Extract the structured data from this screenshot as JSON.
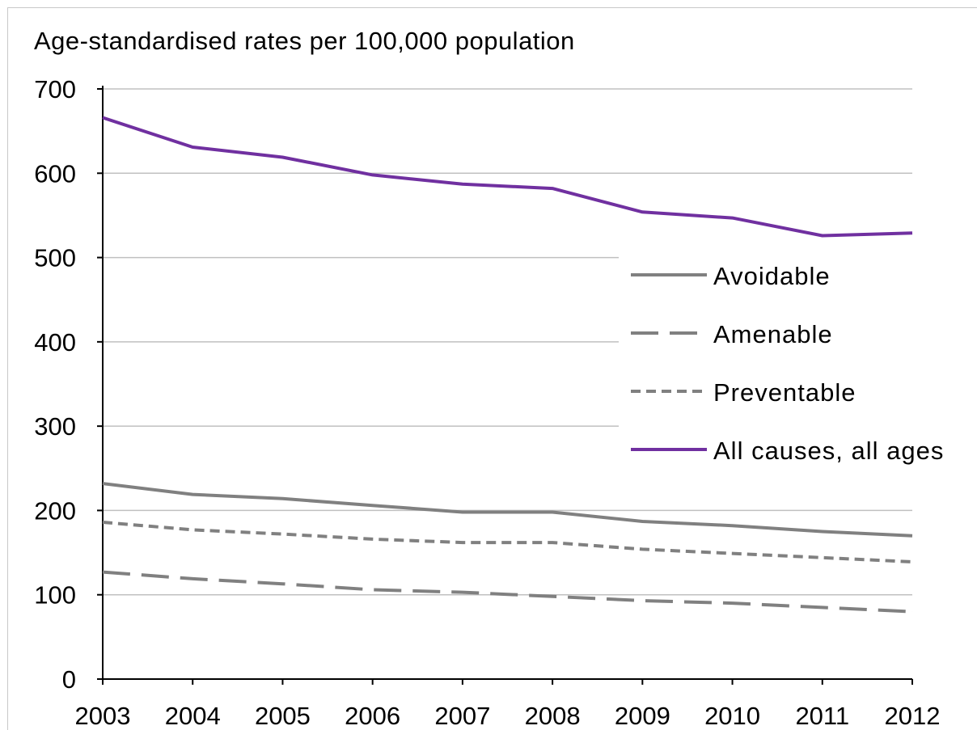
{
  "chart_data": {
    "type": "line",
    "title": "",
    "ylabel": "Age-standardised rates per 100,000 population",
    "xlabel": "",
    "x": [
      "2003",
      "2004",
      "2005",
      "2006",
      "2007",
      "2008",
      "2009",
      "2010",
      "2011",
      "2012"
    ],
    "ylim": [
      0,
      700
    ],
    "yticks": [
      "0",
      "100",
      "200",
      "300",
      "400",
      "500",
      "600",
      "700"
    ],
    "grid": "horizontal",
    "legend_position": "right",
    "series": [
      {
        "name": "Avoidable",
        "style": "solid",
        "color": "#808080",
        "values": [
          232,
          219,
          214,
          206,
          198,
          198,
          187,
          182,
          175,
          170
        ]
      },
      {
        "name": "Amenable",
        "style": "long-dash",
        "color": "#808080",
        "values": [
          127,
          119,
          113,
          106,
          103,
          98,
          93,
          90,
          85,
          80
        ]
      },
      {
        "name": "Preventable",
        "style": "short-dash",
        "color": "#808080",
        "values": [
          186,
          177,
          172,
          166,
          162,
          162,
          154,
          149,
          144,
          139
        ]
      },
      {
        "name": "All causes, all ages",
        "style": "solid",
        "color": "#7030a0",
        "values": [
          666,
          631,
          619,
          598,
          587,
          582,
          554,
          547,
          526,
          529
        ]
      }
    ]
  }
}
